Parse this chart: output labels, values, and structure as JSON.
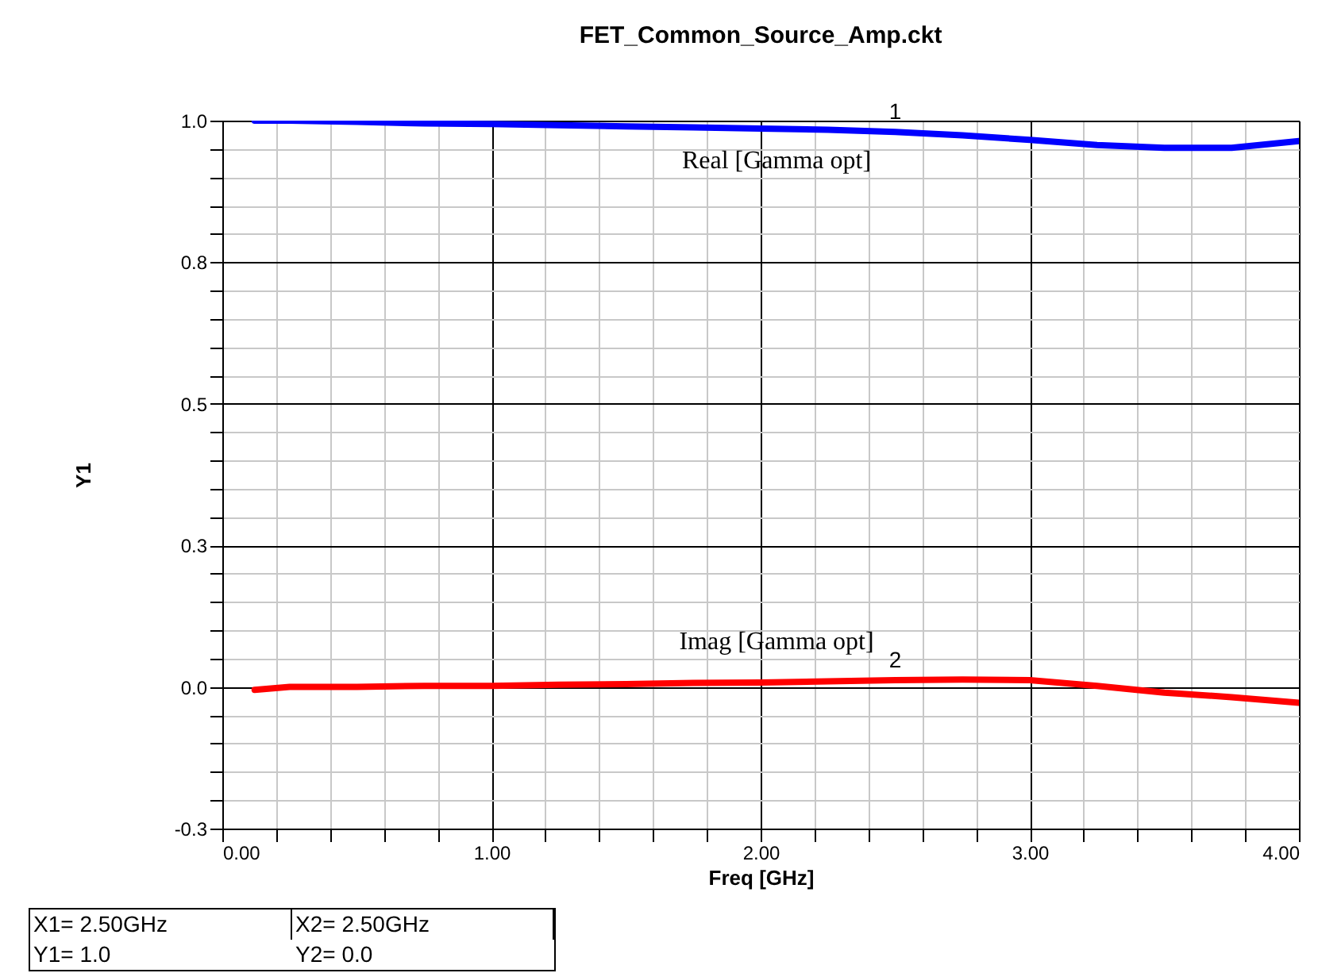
{
  "chart_data": {
    "type": "line",
    "title": "FET_Common_Source_Amp.ckt",
    "xlabel": "Freq [GHz]",
    "ylabel": "Y1",
    "x": [
      0.12,
      0.25,
      0.5,
      0.75,
      1.0,
      1.25,
      1.5,
      1.75,
      2.0,
      2.25,
      2.5,
      2.75,
      3.0,
      3.25,
      3.5,
      3.75,
      4.0
    ],
    "series": [
      {
        "name": "Real [Gamma opt]",
        "color": "#0000ff",
        "values": [
          1.0,
          1.0,
          0.998,
          0.995,
          0.994,
          0.992,
          0.99,
          0.988,
          0.986,
          0.984,
          0.98,
          0.974,
          0.966,
          0.957,
          0.952,
          0.952,
          0.964
        ]
      },
      {
        "name": "Imag [Gamma opt]",
        "color": "#ff0000",
        "values": [
          -0.005,
          0.0,
          0.0,
          0.002,
          0.002,
          0.004,
          0.005,
          0.007,
          0.008,
          0.01,
          0.012,
          0.013,
          0.012,
          0.002,
          -0.01,
          -0.018,
          -0.028
        ]
      }
    ],
    "xlim": [
      0,
      4
    ],
    "xticks": [
      {
        "value": 0,
        "label": "0.00"
      },
      {
        "value": 0.2,
        "label": null
      },
      {
        "value": 0.4,
        "label": null
      },
      {
        "value": 0.6,
        "label": null
      },
      {
        "value": 0.8,
        "label": null
      },
      {
        "value": 1,
        "label": "1.00"
      },
      {
        "value": 1.2,
        "label": null
      },
      {
        "value": 1.4,
        "label": null
      },
      {
        "value": 1.6,
        "label": null
      },
      {
        "value": 1.8,
        "label": null
      },
      {
        "value": 2,
        "label": "2.00"
      },
      {
        "value": 2.2,
        "label": null
      },
      {
        "value": 2.4,
        "label": null
      },
      {
        "value": 2.6,
        "label": null
      },
      {
        "value": 2.8,
        "label": null
      },
      {
        "value": 3,
        "label": "3.00"
      },
      {
        "value": 3.2,
        "label": null
      },
      {
        "value": 3.4,
        "label": null
      },
      {
        "value": 3.6,
        "label": null
      },
      {
        "value": 3.8,
        "label": null
      },
      {
        "value": 4,
        "label": "4.00"
      }
    ],
    "ylim": [
      -0.25,
      1.0
    ],
    "yticks": [
      {
        "value": -0.25,
        "label": "-0.3"
      },
      {
        "value": -0.2,
        "label": null
      },
      {
        "value": -0.15,
        "label": null
      },
      {
        "value": -0.1,
        "label": null
      },
      {
        "value": -0.05,
        "label": null
      },
      {
        "value": 0,
        "label": "0.0"
      },
      {
        "value": 0.05,
        "label": null
      },
      {
        "value": 0.1,
        "label": null
      },
      {
        "value": 0.15,
        "label": null
      },
      {
        "value": 0.2,
        "label": null
      },
      {
        "value": 0.25,
        "label": "0.3"
      },
      {
        "value": 0.3,
        "label": null
      },
      {
        "value": 0.35,
        "label": null
      },
      {
        "value": 0.4,
        "label": null
      },
      {
        "value": 0.45,
        "label": null
      },
      {
        "value": 0.5,
        "label": "0.5"
      },
      {
        "value": 0.55,
        "label": null
      },
      {
        "value": 0.6,
        "label": null
      },
      {
        "value": 0.65,
        "label": null
      },
      {
        "value": 0.7,
        "label": null
      },
      {
        "value": 0.75,
        "label": "0.8"
      },
      {
        "value": 0.8,
        "label": null
      },
      {
        "value": 0.85,
        "label": null
      },
      {
        "value": 0.9,
        "label": null
      },
      {
        "value": 0.95,
        "label": null
      },
      {
        "value": 1.0,
        "label": "1.0"
      }
    ],
    "grid": true,
    "legend": false,
    "marker": "none",
    "line_style": "solid",
    "annotations": [
      {
        "text": "1",
        "x": 2.5,
        "y": 0.98
      },
      {
        "text": "2",
        "x": 2.5,
        "y": 0.012
      },
      "X1= 2.50GHz",
      "Y1= 1.0",
      "X2= 2.50GHz",
      "Y2= 0.0"
    ]
  }
}
